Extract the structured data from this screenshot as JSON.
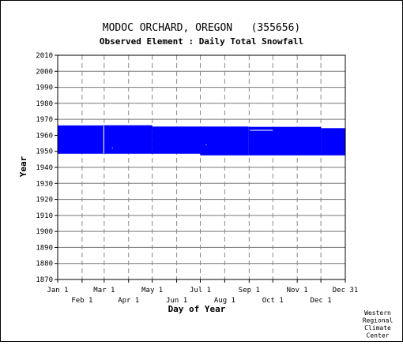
{
  "chart_data": {
    "type": "coverage",
    "title": "MODOC ORCHARD, OREGON   (355656)",
    "subtitle": "Observed Element : Daily Total Snowfall",
    "xlabel": "Day of Year",
    "ylabel": "Year",
    "ylim": [
      1870,
      2010
    ],
    "yticks": [
      1870,
      1880,
      1890,
      1900,
      1910,
      1920,
      1930,
      1940,
      1950,
      1960,
      1970,
      1980,
      1990,
      2000,
      2010
    ],
    "xlim": [
      1,
      366
    ],
    "xticks_top_row": [
      {
        "label": "Jan 1",
        "day": 1
      },
      {
        "label": "Mar 1",
        "day": 60
      },
      {
        "label": "May 1",
        "day": 121
      },
      {
        "label": "Jul 1",
        "day": 182
      },
      {
        "label": "Sep 1",
        "day": 244
      },
      {
        "label": "Nov 1",
        "day": 305
      },
      {
        "label": "Dec 31",
        "day": 366
      }
    ],
    "xticks_bottom_row": [
      {
        "label": "Feb 1",
        "day": 32
      },
      {
        "label": "Apr 1",
        "day": 91
      },
      {
        "label": "Jun 1",
        "day": 152
      },
      {
        "label": "Aug 1",
        "day": 213
      },
      {
        "label": "Oct 1",
        "day": 274
      },
      {
        "label": "Dec 1",
        "day": 335
      }
    ],
    "data_color": "#0000ff",
    "coverage_blocks": [
      {
        "day_start": 1,
        "day_end": 59,
        "year_start": 1948.5,
        "year_end": 1966.2
      },
      {
        "day_start": 59,
        "day_end": 121,
        "year_start": 1948.5,
        "year_end": 1966.3
      },
      {
        "day_start": 121,
        "day_end": 182,
        "year_start": 1948.5,
        "year_end": 1965.5
      },
      {
        "day_start": 182,
        "day_end": 243,
        "year_start": 1947.5,
        "year_end": 1965.5
      },
      {
        "day_start": 243,
        "day_end": 335,
        "year_start": 1947.5,
        "year_end": 1965.3
      },
      {
        "day_start": 335,
        "day_end": 366,
        "year_start": 1947.5,
        "year_end": 1964.5
      }
    ],
    "gaps": [
      {
        "day_start": 59,
        "day_end": 60,
        "year_start": 1948.5,
        "year_end": 1966.0
      },
      {
        "day_start": 245,
        "day_end": 274,
        "year_start": 1963.0,
        "year_end": 1963.4
      },
      {
        "day_start": 70,
        "day_end": 71,
        "year_start": 1952.0,
        "year_end": 1952.4
      },
      {
        "day_start": 189,
        "day_end": 190,
        "year_start": 1954.0,
        "year_end": 1954.4
      }
    ],
    "credit_lines": [
      "Western",
      "Regional",
      "Climate",
      "Center"
    ]
  }
}
